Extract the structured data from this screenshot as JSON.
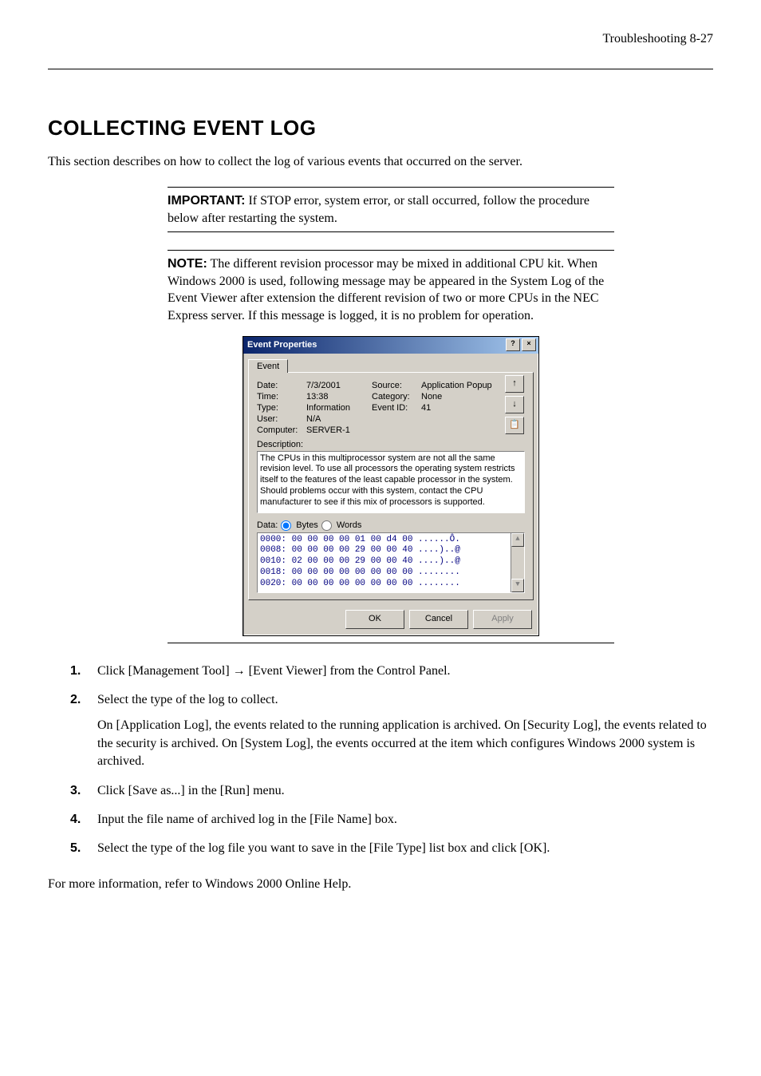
{
  "header": {
    "text": "Troubleshooting   8-27"
  },
  "title": "COLLECTING EVENT LOG",
  "intro": "This section describes on how to collect the log of various events that occurred on the server.",
  "important": {
    "label": "IMPORTANT:",
    "text": " If STOP error, system error, or stall occurred, follow the procedure below after restarting the system."
  },
  "note": {
    "label": "NOTE:",
    "text": " The different revision processor may be mixed in additional CPU kit.   When Windows 2000 is used, following message may be appeared in the System Log of the Event Viewer after extension the different revision of two or more CPUs in the NEC Express server. If this message is logged, it is no problem for operation."
  },
  "dialog": {
    "title": "Event Properties",
    "help_glyph": "?",
    "close_glyph": "×",
    "tab": "Event",
    "fields": {
      "date_label": "Date:",
      "date_value": "7/3/2001",
      "source_label": "Source:",
      "source_value": "Application Popup",
      "time_label": "Time:",
      "time_value": "13:38",
      "category_label": "Category:",
      "category_value": "None",
      "type_label": "Type:",
      "type_value": "Information",
      "eventid_label": "Event ID:",
      "eventid_value": "41",
      "user_label": "User:",
      "user_value": "N/A",
      "computer_label": "Computer:",
      "computer_value": "SERVER-1"
    },
    "nav": {
      "up": "↑",
      "down": "↓",
      "copy": "📋"
    },
    "description_label": "Description:",
    "description_text": "The CPUs in this multiprocessor system are not all the same revision level. To use all processors the operating system restricts itself to the features of the least capable processor in the system.  Should problems occur with this system, contact the CPU manufacturer to see if this mix of processors is supported.",
    "data_label": "Data:",
    "radio_bytes": "Bytes",
    "radio_words": "Words",
    "hex_lines": [
      "0000: 00 00 00 00 01 00 d4 00   ......Ô.",
      "0008: 00 00 00 00 29 00 00 40   ....)..@",
      "0010: 02 00 00 00 29 00 00 40   ....)..@",
      "0018: 00 00 00 00 00 00 00 00   ........",
      "0020: 00 00 00 00 00 00 00 00   ........"
    ],
    "buttons": {
      "ok": "OK",
      "cancel": "Cancel",
      "apply": "Apply"
    }
  },
  "steps": {
    "s1": "Click [Management Tool] → [Event Viewer] from the Control Panel.",
    "s2": "Select the type of the log to collect.",
    "s2_detail": "On [Application Log], the events related to the running application is archived.   On [Security Log], the events related to the security is archived.   On [System Log], the events occurred at the item which configures Windows 2000 system is archived.",
    "s3": "Click [Save as...] in the [Run] menu.",
    "s4": "Input the file name of archived log in the [File Name] box.",
    "s5": "Select the type of the log file you want to save in the [File Type] list box and click [OK]."
  },
  "closing": "For more information, refer to Windows 2000 Online Help."
}
